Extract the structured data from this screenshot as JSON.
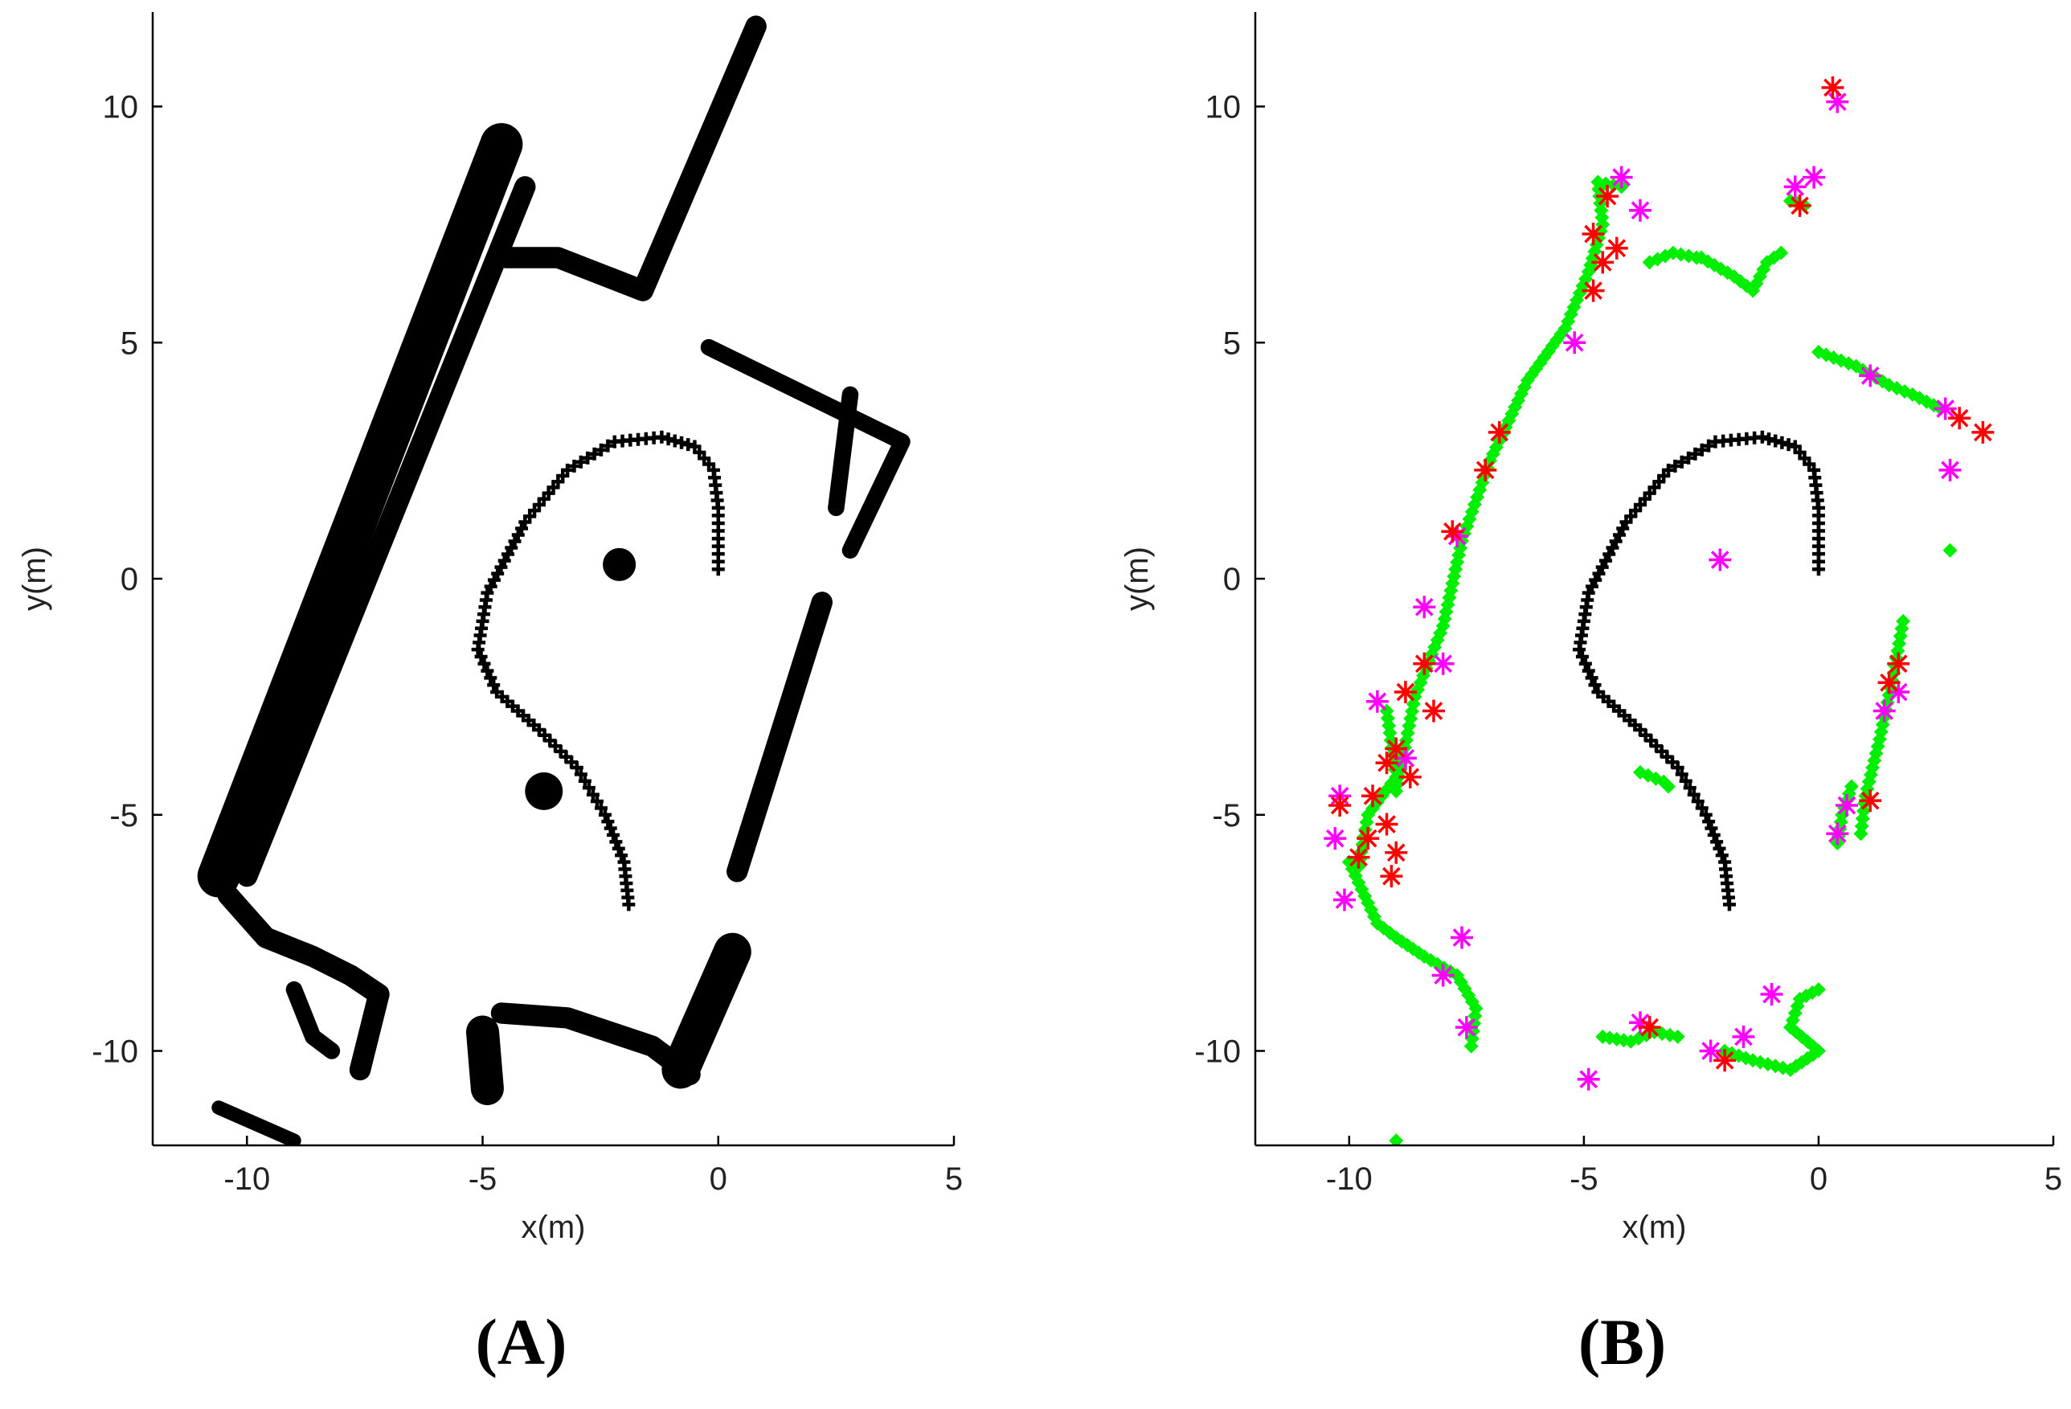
{
  "colors": {
    "trajectory": "#000000",
    "map_points": "#000000",
    "static_points": "#00ee00",
    "moving_star": "#ff00ff",
    "feature_star": "#ff0000",
    "axis": "#000000"
  },
  "chart_data": [
    {
      "type": "scatter",
      "panel_label": "(A)",
      "xlabel": "x(m)",
      "ylabel": "y(m)",
      "xlim": [
        -12,
        5
      ],
      "ylim": [
        -12,
        12
      ],
      "xticks": [
        -10,
        -5,
        0,
        5
      ],
      "yticks": [
        -10,
        -5,
        0,
        5,
        10
      ],
      "xtick_labels": [
        "-10",
        "-5",
        "0",
        "5"
      ],
      "ytick_labels": [
        "-10",
        "-5",
        "0",
        "5",
        "10"
      ],
      "grid": false,
      "trajectory": [
        [
          0,
          0.2
        ],
        [
          0,
          1.5
        ],
        [
          -0.1,
          2.3
        ],
        [
          -0.5,
          2.8
        ],
        [
          -1.2,
          3.0
        ],
        [
          -2.2,
          2.9
        ],
        [
          -3.2,
          2.3
        ],
        [
          -4.1,
          1.2
        ],
        [
          -4.9,
          -0.3
        ],
        [
          -5.1,
          -1.5
        ],
        [
          -4.7,
          -2.4
        ],
        [
          -3.8,
          -3.2
        ],
        [
          -3.0,
          -4.0
        ],
        [
          -2.4,
          -5.0
        ],
        [
          -2.0,
          -6.0
        ],
        [
          -1.9,
          -6.9
        ]
      ],
      "map_segments": [
        {
          "points": [
            [
              -10.6,
              -6.3
            ],
            [
              -4.6,
              9.2
            ]
          ],
          "width": 0.9
        },
        {
          "points": [
            [
              -10.0,
              -6.3
            ],
            [
              -4.1,
              8.3
            ]
          ],
          "width": 0.45
        },
        {
          "points": [
            [
              -10.4,
              -6.7
            ],
            [
              -9.6,
              -7.6
            ],
            [
              -8.6,
              -8.0
            ],
            [
              -7.8,
              -8.4
            ],
            [
              -7.2,
              -8.8
            ],
            [
              -7.6,
              -10.4
            ]
          ],
          "width": 0.45
        },
        {
          "points": [
            [
              -9.0,
              -8.7
            ],
            [
              -8.6,
              -9.7
            ],
            [
              -8.2,
              -10.0
            ]
          ],
          "width": 0.35
        },
        {
          "points": [
            [
              -4.5,
              6.8
            ],
            [
              -3.4,
              6.8
            ],
            [
              -1.6,
              6.1
            ],
            [
              0.8,
              11.7
            ]
          ],
          "width": 0.45
        },
        {
          "points": [
            [
              -4.6,
              -9.2
            ],
            [
              -3.2,
              -9.3
            ],
            [
              -1.4,
              -9.9
            ],
            [
              -0.6,
              -10.5
            ]
          ],
          "width": 0.45
        },
        {
          "points": [
            [
              -5.0,
              -9.6
            ],
            [
              -4.9,
              -10.8
            ]
          ],
          "width": 0.7
        },
        {
          "points": [
            [
              -0.8,
              -10.4
            ],
            [
              0.3,
              -7.9
            ]
          ],
          "width": 0.8
        },
        {
          "points": [
            [
              -0.2,
              4.9
            ],
            [
              3.9,
              2.9
            ],
            [
              2.8,
              0.6
            ]
          ],
          "width": 0.35
        },
        {
          "points": [
            [
              2.8,
              3.9
            ],
            [
              2.5,
              1.5
            ]
          ],
          "width": 0.35
        },
        {
          "points": [
            [
              2.2,
              -0.5
            ],
            [
              0.4,
              -6.2
            ]
          ],
          "width": 0.45
        },
        {
          "points": [
            [
              -10.6,
              -11.2
            ],
            [
              -9.0,
              -11.9
            ]
          ],
          "width": 0.3
        }
      ],
      "map_blobs": [
        {
          "center": [
            -2.1,
            0.3
          ],
          "radius": 0.35
        },
        {
          "center": [
            -3.7,
            -4.5
          ],
          "radius": 0.4
        }
      ]
    },
    {
      "type": "scatter",
      "panel_label": "(B)",
      "xlabel": "x(m)",
      "ylabel": "y(m)",
      "xlim": [
        -12,
        5
      ],
      "ylim": [
        -12,
        12
      ],
      "xticks": [
        -10,
        -5,
        0,
        5
      ],
      "yticks": [
        -10,
        -5,
        0,
        5,
        10
      ],
      "xtick_labels": [
        "-10",
        "-5",
        "0",
        "5"
      ],
      "ytick_labels": [
        "-10",
        "-5",
        "0",
        "5",
        "10"
      ],
      "grid": false,
      "trajectory": [
        [
          0,
          0.2
        ],
        [
          0,
          1.5
        ],
        [
          -0.1,
          2.3
        ],
        [
          -0.5,
          2.8
        ],
        [
          -1.2,
          3.0
        ],
        [
          -2.2,
          2.9
        ],
        [
          -3.2,
          2.3
        ],
        [
          -4.1,
          1.2
        ],
        [
          -4.9,
          -0.3
        ],
        [
          -5.1,
          -1.5
        ],
        [
          -4.7,
          -2.4
        ],
        [
          -3.8,
          -3.2
        ],
        [
          -3.0,
          -4.0
        ],
        [
          -2.4,
          -5.0
        ],
        [
          -2.0,
          -6.0
        ],
        [
          -1.9,
          -6.9
        ]
      ],
      "static_paths": [
        [
          [
            -9.0,
            -4.5
          ],
          [
            -8.6,
            -2.5
          ],
          [
            -8.0,
            -1.0
          ],
          [
            -7.6,
            0.8
          ],
          [
            -7.0,
            2.5
          ],
          [
            -6.2,
            4.2
          ],
          [
            -5.4,
            5.3
          ],
          [
            -4.9,
            6.5
          ],
          [
            -4.6,
            7.5
          ],
          [
            -4.7,
            8.4
          ],
          [
            -4.2,
            8.3
          ]
        ],
        [
          [
            -10.0,
            -6.0
          ],
          [
            -9.4,
            -7.3
          ],
          [
            -9.0,
            -7.6
          ],
          [
            -8.4,
            -8.0
          ],
          [
            -7.7,
            -8.4
          ],
          [
            -7.3,
            -9.1
          ],
          [
            -7.4,
            -9.9
          ]
        ],
        [
          [
            -9.2,
            -2.8
          ],
          [
            -9.0,
            -4.2
          ],
          [
            -9.6,
            -5.0
          ],
          [
            -9.8,
            -6.1
          ]
        ],
        [
          [
            -2.5,
            6.8
          ],
          [
            -1.8,
            6.4
          ],
          [
            -1.4,
            6.1
          ],
          [
            -1.1,
            6.7
          ],
          [
            -0.8,
            6.9
          ]
        ],
        [
          [
            -3.6,
            6.7
          ],
          [
            -3.1,
            6.9
          ],
          [
            -2.6,
            6.8
          ]
        ],
        [
          [
            -0.6,
            8.0
          ],
          [
            -0.3,
            7.9
          ]
        ],
        [
          [
            0,
            4.8
          ],
          [
            0.8,
            4.5
          ],
          [
            1.5,
            4.1
          ],
          [
            2.0,
            3.9
          ],
          [
            2.6,
            3.6
          ]
        ],
        [
          [
            1.8,
            -0.9
          ],
          [
            1.6,
            -2.0
          ],
          [
            1.3,
            -3.4
          ],
          [
            1.0,
            -4.6
          ],
          [
            0.9,
            -5.4
          ]
        ],
        [
          [
            0.7,
            -4.4
          ],
          [
            0.5,
            -5.0
          ],
          [
            0.4,
            -5.6
          ]
        ],
        [
          [
            -3.8,
            -4.1
          ],
          [
            -3.3,
            -4.3
          ],
          [
            -3.2,
            -4.4
          ]
        ],
        [
          [
            -4.6,
            -9.7
          ],
          [
            -4.0,
            -9.8
          ],
          [
            -3.5,
            -9.6
          ],
          [
            -3.0,
            -9.7
          ]
        ],
        [
          [
            -2.0,
            -10.0
          ],
          [
            -1.4,
            -10.2
          ],
          [
            -0.6,
            -10.4
          ],
          [
            0,
            -10.0
          ],
          [
            -0.6,
            -9.5
          ],
          [
            -0.4,
            -8.9
          ],
          [
            0.0,
            -8.7
          ]
        ]
      ],
      "static_points": [
        [
          2.8,
          0.6
        ],
        [
          -9.0,
          -11.9
        ]
      ],
      "moving_points": [
        [
          0.4,
          10.1
        ],
        [
          -0.5,
          8.3
        ],
        [
          -0.1,
          8.5
        ],
        [
          -4.2,
          8.5
        ],
        [
          -3.8,
          7.8
        ],
        [
          -5.2,
          5.0
        ],
        [
          -7.7,
          0.9
        ],
        [
          -8.4,
          -0.6
        ],
        [
          -8.0,
          -1.8
        ],
        [
          -9.4,
          -2.6
        ],
        [
          -10.2,
          -4.6
        ],
        [
          -10.3,
          -5.5
        ],
        [
          -10.1,
          -6.8
        ],
        [
          -8.8,
          -3.8
        ],
        [
          -7.5,
          -9.5
        ],
        [
          -4.9,
          -10.6
        ],
        [
          -3.8,
          -9.4
        ],
        [
          -2.3,
          -10.0
        ],
        [
          -1.6,
          -9.7
        ],
        [
          -1.0,
          -8.8
        ],
        [
          -2.1,
          0.4
        ],
        [
          2.8,
          2.3
        ],
        [
          2.7,
          3.6
        ],
        [
          1.1,
          4.3
        ],
        [
          1.7,
          -2.4
        ],
        [
          1.4,
          -2.8
        ],
        [
          0.4,
          -5.4
        ],
        [
          0.6,
          -4.8
        ],
        [
          -7.6,
          -7.6
        ],
        [
          -8.0,
          -8.4
        ]
      ],
      "feature_points": [
        [
          0.3,
          10.4
        ],
        [
          -0.4,
          7.9
        ],
        [
          -4.8,
          7.3
        ],
        [
          -4.6,
          6.7
        ],
        [
          -4.8,
          6.1
        ],
        [
          -4.3,
          7.0
        ],
        [
          -4.5,
          8.1
        ],
        [
          -6.8,
          3.1
        ],
        [
          -7.1,
          2.3
        ],
        [
          -7.8,
          1.0
        ],
        [
          -8.4,
          -1.8
        ],
        [
          -8.2,
          -2.8
        ],
        [
          -8.8,
          -2.4
        ],
        [
          -9.0,
          -3.6
        ],
        [
          -8.7,
          -4.2
        ],
        [
          -9.5,
          -4.6
        ],
        [
          -9.2,
          -5.2
        ],
        [
          -9.0,
          -5.8
        ],
        [
          -9.1,
          -6.3
        ],
        [
          -9.8,
          -5.9
        ],
        [
          -10.2,
          -4.8
        ],
        [
          -9.6,
          -5.5
        ],
        [
          -3.6,
          -9.5
        ],
        [
          -2.0,
          -10.2
        ],
        [
          1.5,
          -2.2
        ],
        [
          1.7,
          -1.8
        ],
        [
          1.1,
          -4.7
        ],
        [
          3.0,
          3.4
        ],
        [
          3.5,
          3.1
        ],
        [
          -9.2,
          -3.9
        ]
      ]
    }
  ]
}
